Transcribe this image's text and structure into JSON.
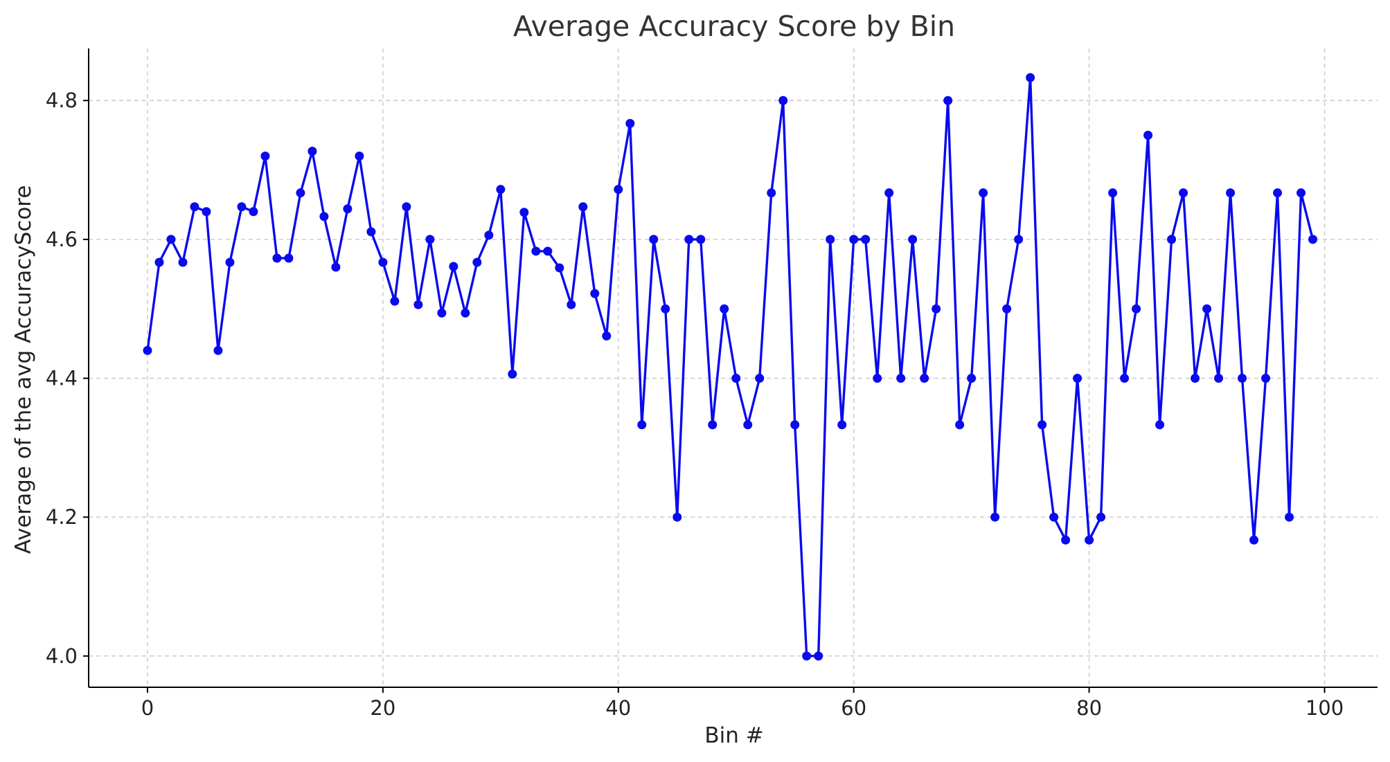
{
  "chart_data": {
    "type": "line",
    "title": "Average Accuracy Score by Bin",
    "xlabel": "Bin #",
    "ylabel": "Average of the avg AccuracyScore",
    "xlim": [
      -5,
      104.5
    ],
    "ylim": [
      3.955,
      4.875
    ],
    "xticks": [
      0,
      20,
      40,
      60,
      80,
      100
    ],
    "yticks": [
      4.0,
      4.2,
      4.4,
      4.6,
      4.8
    ],
    "ytick_format_decimals": 1,
    "grid": true,
    "line_color": "#0a0aee",
    "marker": "circle",
    "series": [
      {
        "x": [
          0,
          1,
          2,
          3,
          4,
          5,
          6,
          7,
          8,
          9,
          10,
          11,
          12,
          13,
          14,
          15,
          16,
          17,
          18,
          19,
          20,
          21,
          22,
          23,
          24,
          25,
          26,
          27,
          28,
          29,
          30,
          31,
          32,
          33,
          34,
          35,
          36,
          37,
          38,
          39,
          40,
          41,
          42,
          43,
          44,
          45,
          46,
          47,
          48,
          49,
          50,
          51,
          52,
          53,
          54,
          55,
          56,
          57,
          58,
          59,
          60,
          61,
          62,
          63,
          64,
          65,
          66,
          67,
          68,
          69,
          70,
          71,
          72,
          73,
          74,
          75,
          76,
          77,
          78,
          79,
          80,
          81,
          82,
          83,
          84,
          85,
          86,
          87,
          88,
          89,
          90,
          91,
          92,
          93,
          94,
          95,
          96,
          97,
          98,
          99
        ],
        "values": [
          4.44,
          4.567,
          4.6,
          4.567,
          4.647,
          4.64,
          4.44,
          4.567,
          4.647,
          4.64,
          4.72,
          4.573,
          4.573,
          4.667,
          4.727,
          4.633,
          4.56,
          4.644,
          4.72,
          4.611,
          4.567,
          4.511,
          4.647,
          4.506,
          4.6,
          4.494,
          4.561,
          4.494,
          4.567,
          4.606,
          4.672,
          4.406,
          4.639,
          4.583,
          4.583,
          4.559,
          4.506,
          4.647,
          4.522,
          4.461,
          4.672,
          4.767,
          4.333,
          4.6,
          4.5,
          4.2,
          4.6,
          4.6,
          4.333,
          4.5,
          4.4,
          4.333,
          4.4,
          4.667,
          4.8,
          4.333,
          4.0,
          4.0,
          4.6,
          4.333,
          4.6,
          4.6,
          4.4,
          4.667,
          4.4,
          4.6,
          4.4,
          4.5,
          4.8,
          4.333,
          4.4,
          4.667,
          4.2,
          4.5,
          4.6,
          4.833,
          4.333,
          4.2,
          4.167,
          4.4,
          4.167,
          4.2,
          4.667,
          4.4,
          4.5,
          4.75,
          4.333,
          4.6,
          4.667,
          4.4,
          4.5,
          4.4,
          4.667,
          4.4,
          4.167,
          4.4,
          4.667,
          4.2,
          4.667,
          4.6
        ]
      }
    ]
  }
}
